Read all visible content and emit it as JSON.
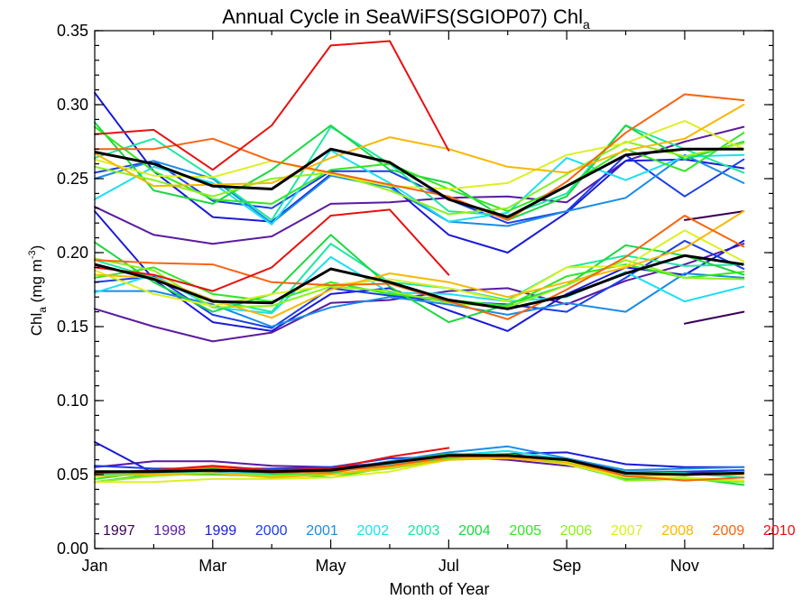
{
  "chart_data": {
    "type": "line",
    "title": "Annual Cycle in SeaWiFS(SGIOP07) Chl",
    "title_subscript": "a",
    "xlabel": "Month of Year",
    "ylabel_main": "Chl",
    "ylabel_sub": "a",
    "ylabel_units": "(mg m",
    "ylabel_exp": "-3",
    "ylabel_close": ")",
    "xlim": [
      1,
      12.5
    ],
    "ylim": [
      0,
      0.35
    ],
    "x_ticks": [
      {
        "value": 1,
        "label": "Jan"
      },
      {
        "value": 3,
        "label": "Mar"
      },
      {
        "value": 5,
        "label": "May"
      },
      {
        "value": 7,
        "label": "Jul"
      },
      {
        "value": 9,
        "label": "Sep"
      },
      {
        "value": 11,
        "label": "Nov"
      }
    ],
    "y_ticks": [
      {
        "value": 0.0,
        "label": "0.00"
      },
      {
        "value": 0.05,
        "label": "0.05"
      },
      {
        "value": 0.1,
        "label": "0.10"
      },
      {
        "value": 0.15,
        "label": "0.15"
      },
      {
        "value": 0.2,
        "label": "0.20"
      },
      {
        "value": 0.25,
        "label": "0.25"
      },
      {
        "value": 0.3,
        "label": "0.30"
      },
      {
        "value": 0.35,
        "label": "0.35"
      }
    ],
    "x": [
      1.0,
      2.0,
      3.0,
      4.0,
      5.0,
      6.0,
      7.0,
      8.0,
      9.0,
      10.0,
      11.0,
      12.0
    ],
    "legend_position": "bottom",
    "series": [
      {
        "name": "1997",
        "color": "#3a0058",
        "upper": [
          null,
          null,
          null,
          null,
          null,
          null,
          null,
          null,
          null,
          null,
          0.222,
          0.228
        ],
        "middle": [
          null,
          null,
          null,
          null,
          null,
          null,
          null,
          null,
          null,
          null,
          0.152,
          0.16
        ],
        "lower": [
          null,
          null,
          null,
          null,
          null,
          null,
          null,
          null,
          null,
          0.052,
          0.05,
          0.051
        ]
      },
      {
        "name": "1998",
        "color": "#5a1aa0",
        "upper": [
          0.231,
          0.212,
          0.206,
          0.211,
          0.233,
          0.234,
          0.237,
          0.238,
          0.234,
          0.262,
          0.275,
          0.285
        ],
        "middle": [
          0.162,
          0.15,
          0.14,
          0.146,
          0.166,
          0.168,
          0.174,
          0.176,
          0.165,
          0.181,
          0.192,
          0.206
        ],
        "lower": [
          0.055,
          0.059,
          0.059,
          0.056,
          0.055,
          0.058,
          0.062,
          0.06,
          0.056,
          0.052,
          0.051,
          0.052
        ]
      },
      {
        "name": "1999",
        "color": "#1a1ad8",
        "upper": [
          0.308,
          0.255,
          0.224,
          0.221,
          0.253,
          0.246,
          0.212,
          0.2,
          0.227,
          0.262,
          0.263,
          0.257
        ],
        "middle": [
          0.228,
          0.182,
          0.153,
          0.147,
          0.172,
          0.176,
          0.161,
          0.147,
          0.172,
          0.19,
          0.185,
          0.208
        ],
        "lower": [
          0.072,
          0.051,
          0.052,
          0.053,
          0.054,
          0.056,
          0.06,
          0.064,
          0.065,
          0.057,
          0.055,
          0.055
        ]
      },
      {
        "name": "2000",
        "color": "#1a3ee8",
        "upper": [
          0.254,
          0.262,
          0.235,
          0.23,
          0.255,
          0.255,
          0.236,
          0.22,
          0.228,
          0.266,
          0.238,
          0.263
        ],
        "middle": [
          0.18,
          0.184,
          0.158,
          0.149,
          0.176,
          0.171,
          0.167,
          0.165,
          0.16,
          0.183,
          0.208,
          0.189
        ],
        "lower": [
          0.056,
          0.054,
          0.054,
          0.054,
          0.055,
          0.061,
          0.062,
          0.062,
          0.059,
          0.052,
          0.052,
          0.053
        ]
      },
      {
        "name": "2001",
        "color": "#1a8ce8",
        "upper": [
          0.25,
          0.262,
          0.25,
          0.22,
          0.252,
          0.244,
          0.221,
          0.218,
          0.228,
          0.237,
          0.266,
          0.247
        ],
        "middle": [
          0.174,
          0.174,
          0.165,
          0.15,
          0.163,
          0.17,
          0.165,
          0.158,
          0.166,
          0.16,
          0.186,
          0.183
        ],
        "lower": [
          0.051,
          0.052,
          0.05,
          0.052,
          0.053,
          0.059,
          0.065,
          0.069,
          0.061,
          0.053,
          0.054,
          0.055
        ]
      },
      {
        "name": "2002",
        "color": "#1ae0f0",
        "upper": [
          0.236,
          0.258,
          0.247,
          0.219,
          0.269,
          0.247,
          0.221,
          0.227,
          0.264,
          0.249,
          0.265,
          0.266
        ],
        "middle": [
          0.173,
          0.185,
          0.163,
          0.159,
          0.197,
          0.173,
          0.172,
          0.167,
          0.17,
          0.187,
          0.167,
          0.177
        ],
        "lower": [
          0.052,
          0.052,
          0.051,
          0.051,
          0.052,
          0.057,
          0.063,
          0.066,
          0.06,
          0.05,
          0.05,
          0.052
        ]
      },
      {
        "name": "2003",
        "color": "#1ae8a0",
        "upper": [
          0.264,
          0.277,
          0.251,
          0.222,
          0.285,
          0.26,
          0.228,
          0.225,
          0.24,
          0.286,
          0.27,
          0.254
        ],
        "middle": [
          0.195,
          0.183,
          0.168,
          0.16,
          0.206,
          0.18,
          0.176,
          0.168,
          0.19,
          0.198,
          0.191,
          0.192
        ],
        "lower": [
          0.05,
          0.051,
          0.051,
          0.05,
          0.053,
          0.058,
          0.063,
          0.064,
          0.058,
          0.052,
          0.051,
          0.048
        ]
      },
      {
        "name": "2004",
        "color": "#1ad840",
        "upper": [
          0.288,
          0.242,
          0.233,
          0.256,
          0.286,
          0.256,
          0.247,
          0.222,
          0.238,
          0.286,
          0.263,
          0.275
        ],
        "middle": [
          0.207,
          0.18,
          0.16,
          0.172,
          0.212,
          0.177,
          0.153,
          0.165,
          0.178,
          0.205,
          0.198,
          0.185
        ],
        "lower": [
          0.045,
          0.05,
          0.05,
          0.049,
          0.051,
          0.058,
          0.064,
          0.063,
          0.057,
          0.047,
          0.048,
          0.043
        ]
      },
      {
        "name": "2005",
        "color": "#30e820",
        "upper": [
          0.285,
          0.255,
          0.236,
          0.233,
          0.256,
          0.26,
          0.243,
          0.228,
          0.245,
          0.27,
          0.255,
          0.281
        ],
        "middle": [
          0.183,
          0.19,
          0.172,
          0.167,
          0.18,
          0.172,
          0.168,
          0.164,
          0.184,
          0.192,
          0.183,
          0.187
        ],
        "lower": [
          0.047,
          0.052,
          0.054,
          0.051,
          0.048,
          0.055,
          0.061,
          0.064,
          0.059,
          0.046,
          0.047,
          0.045
        ]
      },
      {
        "name": "2006",
        "color": "#8cf020",
        "upper": [
          0.258,
          0.249,
          0.238,
          0.25,
          0.254,
          0.242,
          0.226,
          0.23,
          0.253,
          0.275,
          0.265,
          0.274
        ],
        "middle": [
          0.196,
          0.188,
          0.163,
          0.164,
          0.177,
          0.174,
          0.166,
          0.163,
          0.178,
          0.195,
          0.183,
          0.182
        ],
        "lower": [
          0.045,
          0.049,
          0.051,
          0.049,
          0.05,
          0.054,
          0.06,
          0.063,
          0.059,
          0.046,
          0.047,
          0.045
        ]
      },
      {
        "name": "2007",
        "color": "#dcf020",
        "upper": [
          0.263,
          0.252,
          0.251,
          0.262,
          0.253,
          0.245,
          0.243,
          0.247,
          0.266,
          0.274,
          0.289,
          0.27
        ],
        "middle": [
          0.188,
          0.172,
          0.164,
          0.172,
          0.178,
          0.182,
          0.176,
          0.167,
          0.19,
          0.191,
          0.215,
          0.194
        ],
        "lower": [
          0.045,
          0.045,
          0.047,
          0.047,
          0.048,
          0.052,
          0.06,
          0.062,
          0.057,
          0.048,
          0.048,
          0.046
        ]
      },
      {
        "name": "2008",
        "color": "#f8b800",
        "upper": [
          0.267,
          0.245,
          0.246,
          0.247,
          0.264,
          0.278,
          0.27,
          0.258,
          0.254,
          0.269,
          0.277,
          0.3
        ],
        "middle": [
          0.185,
          0.183,
          0.168,
          0.156,
          0.175,
          0.186,
          0.18,
          0.17,
          0.18,
          0.19,
          0.203,
          0.228
        ],
        "lower": [
          0.049,
          0.05,
          0.051,
          0.048,
          0.05,
          0.055,
          0.06,
          0.061,
          0.058,
          0.049,
          0.05,
          0.05
        ]
      },
      {
        "name": "2009",
        "color": "#f86410",
        "upper": [
          0.27,
          0.27,
          0.277,
          0.262,
          0.254,
          0.246,
          0.238,
          0.222,
          0.248,
          0.281,
          0.307,
          0.303
        ],
        "middle": [
          0.195,
          0.193,
          0.192,
          0.18,
          0.178,
          0.179,
          0.167,
          0.155,
          0.175,
          0.197,
          0.225,
          0.204
        ],
        "lower": [
          0.051,
          0.052,
          0.055,
          0.051,
          0.052,
          0.056,
          0.062,
          0.062,
          0.06,
          0.049,
          0.046,
          0.048
        ]
      },
      {
        "name": "2010",
        "color": "#e81010",
        "upper": [
          0.28,
          0.283,
          0.256,
          0.286,
          0.34,
          0.343,
          0.269,
          null,
          null,
          null,
          null,
          null
        ],
        "middle": [
          0.19,
          0.185,
          0.174,
          0.19,
          0.225,
          0.229,
          0.185,
          null,
          null,
          null,
          null,
          null
        ],
        "lower": [
          0.051,
          0.053,
          0.056,
          0.053,
          0.054,
          0.062,
          0.068,
          null,
          null,
          null,
          null,
          null
        ]
      }
    ],
    "mean": {
      "color": "#000000",
      "upper": [
        0.268,
        0.26,
        0.245,
        0.243,
        0.27,
        0.261,
        0.236,
        0.224,
        0.245,
        0.266,
        0.27,
        0.27
      ],
      "middle": [
        0.192,
        0.182,
        0.167,
        0.166,
        0.189,
        0.18,
        0.168,
        0.162,
        0.171,
        0.186,
        0.198,
        0.192
      ],
      "lower": [
        0.052,
        0.052,
        0.053,
        0.052,
        0.053,
        0.058,
        0.063,
        0.063,
        0.06,
        0.051,
        0.05,
        0.051
      ]
    }
  }
}
